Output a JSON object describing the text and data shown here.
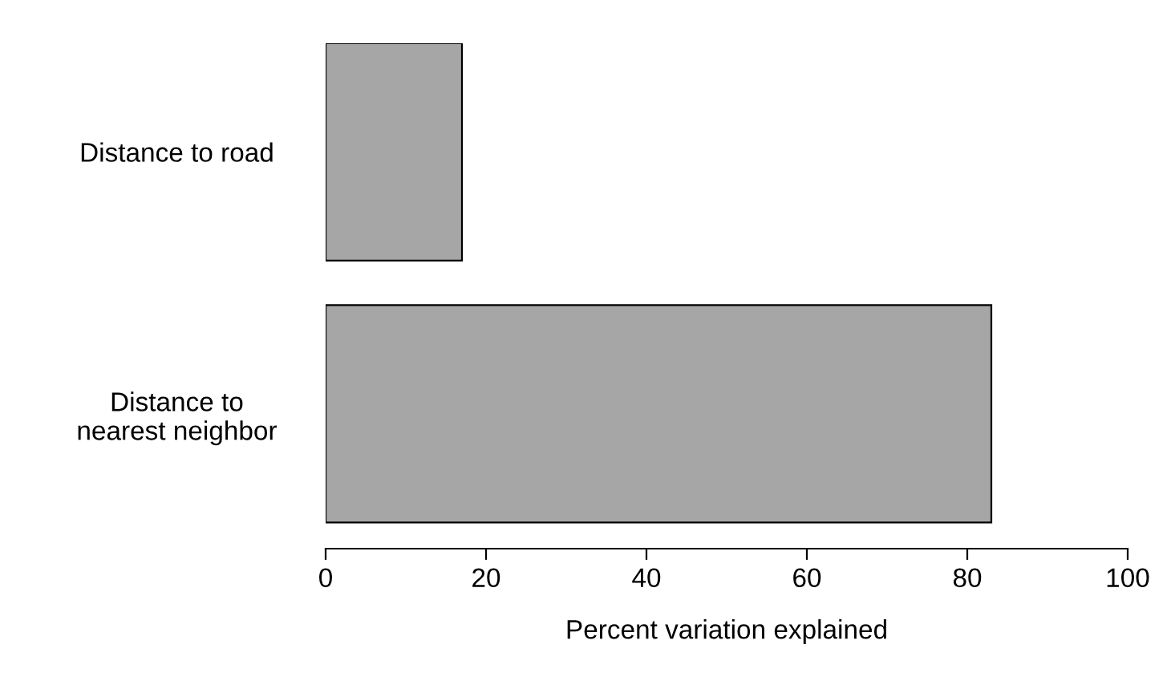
{
  "chart_data": {
    "type": "bar",
    "orientation": "horizontal",
    "xlabel": "Percent variation explained",
    "categories": [
      "Distance to road",
      "Distance to\nnearest neighbor"
    ],
    "values": [
      17,
      83
    ],
    "color": "#a6a6a6",
    "xlim": [
      0,
      100
    ],
    "xticks": [
      0,
      20,
      40,
      60,
      80,
      100
    ],
    "grid": false,
    "legend": false
  }
}
